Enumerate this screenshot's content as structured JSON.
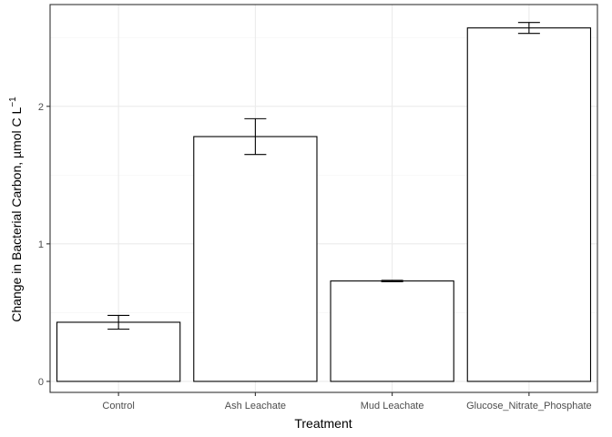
{
  "chart_data": {
    "type": "bar",
    "title": "",
    "xlabel": "Treatment",
    "ylabel": "Change in Bacterial Carbon, µmol C L",
    "ylabel_superscript": "−1",
    "categories": [
      "Control",
      "Ash Leachate",
      "Mud Leachate",
      "Glucose_Nitrate_Phosphate"
    ],
    "values": [
      0.43,
      1.78,
      0.73,
      2.57
    ],
    "error_low": [
      0.38,
      1.65,
      0.725,
      2.53
    ],
    "error_high": [
      0.48,
      1.91,
      0.735,
      2.61
    ],
    "ylim": [
      -0.08,
      2.74
    ],
    "yticks": [
      0,
      1,
      2
    ],
    "ytick_labels": [
      "0",
      "1",
      "2"
    ],
    "grid": true,
    "legend": "none",
    "colors": {
      "bar_fill": "#ffffff",
      "bar_stroke": "#000000",
      "grid_major": "#ebebeb",
      "grid_minor": "#f5f5f5",
      "panel_border": "#333333",
      "tick_text": "#4d4d4d"
    }
  }
}
